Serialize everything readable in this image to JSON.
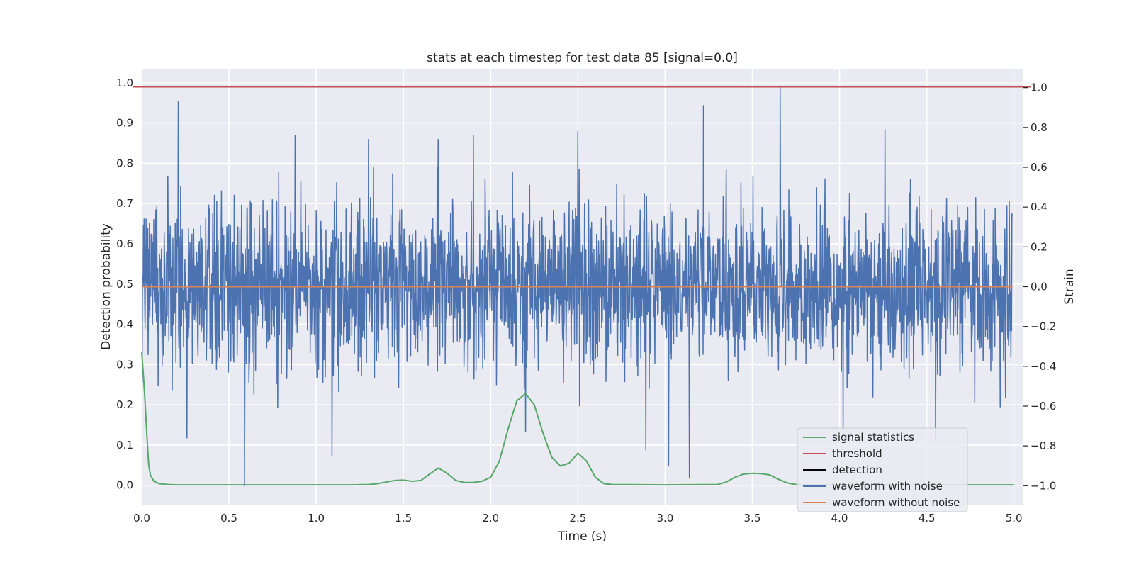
{
  "chart_data": {
    "type": "line",
    "title": "stats at each timestep for test data 85 [signal=0.0]",
    "xlabel": "Time (s)",
    "ylabel_left": "Detection probability",
    "ylabel_right": "Strain",
    "xlim": [
      0.0,
      5.05
    ],
    "ylim_left": [
      -0.048,
      1.035
    ],
    "ylim_right": [
      -1.095,
      1.095
    ],
    "x_ticks": [
      0.0,
      0.5,
      1.0,
      1.5,
      2.0,
      2.5,
      3.0,
      3.5,
      4.0,
      4.5,
      5.0
    ],
    "x_tick_labels": [
      "0.0",
      "0.5",
      "1.0",
      "1.5",
      "2.0",
      "2.5",
      "3.0",
      "3.5",
      "4.0",
      "4.5",
      "5.0"
    ],
    "left_ticks": [
      0.0,
      0.1,
      0.2,
      0.3,
      0.4,
      0.5,
      0.6,
      0.7,
      0.8,
      0.9,
      1.0
    ],
    "left_tick_labels": [
      "0.0",
      "0.1",
      "0.2",
      "0.3",
      "0.4",
      "0.5",
      "0.6",
      "0.7",
      "0.8",
      "0.9",
      "1.0"
    ],
    "right_ticks": [
      -1.0,
      -0.8,
      -0.6,
      -0.4,
      -0.2,
      0.0,
      0.2,
      0.4,
      0.6,
      0.8,
      1.0
    ],
    "right_tick_labels": [
      "−1.0",
      "−0.8",
      "−0.6",
      "−0.4",
      "−0.2",
      "0.0",
      "0.2",
      "0.4",
      "0.6",
      "0.8",
      "1.0"
    ],
    "grid": true,
    "legend_position": "lower-right",
    "series": [
      {
        "name": "signal statistics",
        "axis": "left",
        "color": "#55a868",
        "x": [
          0.0,
          0.01,
          0.02,
          0.03,
          0.04,
          0.05,
          0.07,
          0.1,
          0.15,
          0.2,
          0.5,
          1.0,
          1.2,
          1.3,
          1.35,
          1.4,
          1.45,
          1.5,
          1.55,
          1.6,
          1.65,
          1.7,
          1.75,
          1.8,
          1.85,
          1.9,
          1.95,
          2.0,
          2.05,
          2.1,
          2.15,
          2.2,
          2.25,
          2.3,
          2.35,
          2.4,
          2.45,
          2.5,
          2.55,
          2.6,
          2.65,
          2.7,
          3.0,
          3.3,
          3.35,
          3.4,
          3.45,
          3.5,
          3.55,
          3.6,
          3.65,
          3.7,
          3.75,
          3.8,
          4.0,
          4.5,
          5.0
        ],
        "y": [
          0.33,
          0.27,
          0.2,
          0.12,
          0.05,
          0.025,
          0.01,
          0.004,
          0.002,
          0.001,
          0.001,
          0.001,
          0.001,
          0.002,
          0.004,
          0.008,
          0.012,
          0.013,
          0.01,
          0.012,
          0.028,
          0.043,
          0.03,
          0.012,
          0.007,
          0.007,
          0.01,
          0.02,
          0.06,
          0.14,
          0.21,
          0.228,
          0.2,
          0.13,
          0.07,
          0.048,
          0.055,
          0.08,
          0.06,
          0.02,
          0.004,
          0.002,
          0.001,
          0.002,
          0.008,
          0.02,
          0.028,
          0.03,
          0.029,
          0.026,
          0.015,
          0.006,
          0.002,
          0.001,
          0.001,
          0.001,
          0.001
        ]
      },
      {
        "name": "threshold",
        "axis": "left",
        "color": "#c44e52",
        "x": [
          -0.2,
          5.3
        ],
        "y": [
          0.99,
          0.99
        ]
      },
      {
        "name": "detection",
        "axis": "left",
        "color": "#000000",
        "x": [],
        "y": []
      },
      {
        "name": "waveform with noise",
        "axis": "right",
        "color": "#4c72b0",
        "x_range": [
          0.0,
          4.99
        ],
        "y_range": [
          -1.0,
          1.0
        ],
        "spikes": [
          {
            "x": 0.21,
            "y": 0.93
          },
          {
            "x": 0.26,
            "y": -0.76
          },
          {
            "x": 0.59,
            "y": -1.0
          },
          {
            "x": 0.88,
            "y": 0.76
          },
          {
            "x": 1.09,
            "y": -0.85
          },
          {
            "x": 1.3,
            "y": 0.74
          },
          {
            "x": 1.7,
            "y": 0.74
          },
          {
            "x": 1.9,
            "y": 0.76
          },
          {
            "x": 2.2,
            "y": -0.73
          },
          {
            "x": 2.5,
            "y": 0.78
          },
          {
            "x": 2.89,
            "y": -0.82
          },
          {
            "x": 3.02,
            "y": -0.9
          },
          {
            "x": 3.14,
            "y": -0.96
          },
          {
            "x": 3.22,
            "y": 0.91
          },
          {
            "x": 3.66,
            "y": 1.0
          },
          {
            "x": 4.02,
            "y": -0.72
          },
          {
            "x": 4.26,
            "y": 0.79
          },
          {
            "x": 4.55,
            "y": -0.77
          }
        ]
      },
      {
        "name": "waveform without noise",
        "axis": "right",
        "color": "#dd8452",
        "x": [
          0.0,
          4.99
        ],
        "y": [
          0.0,
          0.0
        ]
      }
    ]
  }
}
